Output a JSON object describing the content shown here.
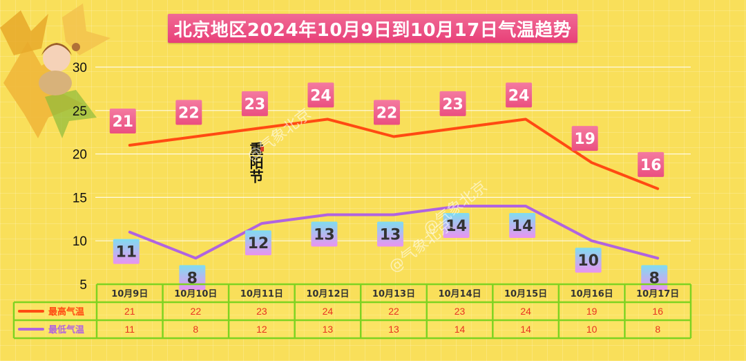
{
  "title": "北京地区2024年10月9日到10月17日气温趋势",
  "watermark": "@气象北京",
  "festival_mark": "重阳节",
  "colors": {
    "high": "#ff4a12",
    "low": "#b063e0",
    "label_high": "#f06a95",
    "grid_border": "#7ed321"
  },
  "chart_data": {
    "type": "line",
    "categories": [
      "10月9日",
      "10月10日",
      "10月11日",
      "10月12日",
      "10月13日",
      "10月14日",
      "10月15日",
      "10月16日",
      "10月17日"
    ],
    "series": [
      {
        "name": "最高气温",
        "values": [
          21,
          22,
          23,
          24,
          22,
          23,
          24,
          19,
          16
        ]
      },
      {
        "name": "最低气温",
        "values": [
          11,
          8,
          12,
          13,
          13,
          14,
          14,
          10,
          8
        ]
      }
    ],
    "yticks": [
      5,
      10,
      15,
      20,
      25,
      30
    ],
    "ylim": [
      5,
      30
    ],
    "grid": true,
    "legend": "table-bottom"
  }
}
